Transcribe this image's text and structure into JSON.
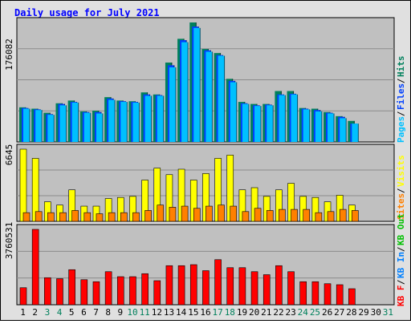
{
  "title": "Daily usage for July 2021",
  "colors": {
    "background": "#C0C0C0",
    "page_bg": "#E0E0E0",
    "title": "#0000FF",
    "hits": "#00805C",
    "files": "#0040FF",
    "pages": "#00C0FF",
    "visits": "#FFFF00",
    "sites": "#FF8000",
    "kb_f": "#FF0000",
    "kb_in": "#0080FF",
    "kb_out": "#00C000"
  },
  "chart_data": [
    {
      "type": "bar",
      "panel": "hits",
      "max_label": "176082",
      "legend": [
        "Pages",
        "Files",
        "Hits"
      ],
      "ylim": [
        0,
        176082
      ],
      "x": [
        1,
        2,
        3,
        4,
        5,
        6,
        7,
        8,
        9,
        10,
        11,
        12,
        13,
        14,
        15,
        16,
        17,
        18,
        19,
        20,
        21,
        22,
        23,
        24,
        25,
        26,
        27,
        28
      ],
      "series": [
        {
          "name": "Hits",
          "values": [
            51000,
            49000,
            43000,
            57000,
            61000,
            45000,
            46000,
            66000,
            61000,
            60000,
            73000,
            70000,
            117000,
            152000,
            176082,
            137000,
            131000,
            93000,
            59000,
            56000,
            56000,
            75000,
            75000,
            50000,
            49000,
            44000,
            38000,
            31000
          ]
        },
        {
          "name": "Files",
          "values": [
            50000,
            48000,
            41000,
            56000,
            59000,
            44000,
            44000,
            64000,
            60000,
            59000,
            70000,
            69000,
            113000,
            150000,
            170000,
            135000,
            128000,
            90000,
            57000,
            54000,
            55000,
            70000,
            71000,
            49000,
            47000,
            43000,
            37000,
            27000
          ]
        },
        {
          "name": "Pages",
          "values": [
            49000,
            47000,
            40000,
            54000,
            58000,
            43000,
            42000,
            62000,
            59000,
            58000,
            68000,
            68000,
            110000,
            147000,
            168000,
            133000,
            127000,
            88000,
            56000,
            53000,
            54000,
            69000,
            70000,
            48000,
            45000,
            42000,
            35000,
            27000
          ]
        }
      ]
    },
    {
      "type": "bar",
      "panel": "visits",
      "max_label": "6645",
      "legend": [
        "Sites",
        "Visits"
      ],
      "ylim": [
        0,
        6645
      ],
      "x": [
        1,
        2,
        3,
        4,
        5,
        6,
        7,
        8,
        9,
        10,
        11,
        12,
        13,
        14,
        15,
        16,
        17,
        18,
        19,
        20,
        21,
        22,
        23,
        24,
        25,
        26,
        27,
        28
      ],
      "series": [
        {
          "name": "Visits",
          "values": [
            6645,
            5800,
            1800,
            1500,
            2900,
            1400,
            1400,
            2100,
            2200,
            2300,
            3800,
            4900,
            4300,
            4800,
            3800,
            4400,
            5800,
            6100,
            2900,
            3100,
            2300,
            2900,
            3500,
            2300,
            2200,
            1800,
            2400,
            1500
          ]
        },
        {
          "name": "Sites",
          "values": [
            800,
            900,
            800,
            800,
            1000,
            800,
            700,
            800,
            800,
            800,
            1000,
            1500,
            1300,
            1400,
            1200,
            1400,
            1500,
            1400,
            900,
            1200,
            1000,
            1100,
            1100,
            1100,
            800,
            900,
            1100,
            1000
          ]
        }
      ]
    },
    {
      "type": "bar",
      "panel": "kbytes",
      "max_label": "3760531",
      "legend": [
        "KB F",
        "KB In",
        "KB Out"
      ],
      "ylim": [
        0,
        3760531
      ],
      "x": [
        1,
        2,
        3,
        4,
        5,
        6,
        7,
        8,
        9,
        10,
        11,
        12,
        13,
        14,
        15,
        16,
        17,
        18,
        19,
        20,
        21,
        22,
        23,
        24,
        25,
        26,
        27,
        28
      ],
      "series": [
        {
          "name": "KB F",
          "values": [
            850000,
            3760531,
            1350000,
            1300000,
            1750000,
            1250000,
            1150000,
            1650000,
            1400000,
            1400000,
            1550000,
            1200000,
            1950000,
            1950000,
            2000000,
            1700000,
            2250000,
            1850000,
            1850000,
            1650000,
            1500000,
            1950000,
            1650000,
            1150000,
            1150000,
            1050000,
            1000000,
            800000
          ]
        }
      ]
    }
  ],
  "x_axis": {
    "labels": [
      "1",
      "2",
      "3",
      "4",
      "5",
      "6",
      "7",
      "8",
      "9",
      "10",
      "11",
      "12",
      "13",
      "14",
      "15",
      "16",
      "17",
      "18",
      "19",
      "20",
      "21",
      "22",
      "23",
      "24",
      "25",
      "26",
      "27",
      "28",
      "29",
      "30",
      "31"
    ],
    "weekend": [
      3,
      4,
      10,
      11,
      17,
      18,
      24,
      25,
      31
    ]
  }
}
